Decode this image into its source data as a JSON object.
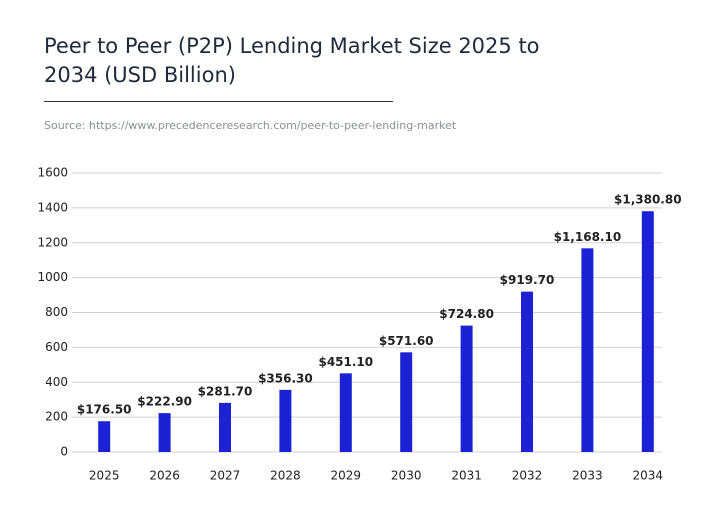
{
  "chart_data": {
    "type": "bar",
    "title": "Peer to Peer (P2P) Lending Market Size 2025 to 2034 (USD Billion)",
    "source": "Source: https://www.precedenceresearch.com/peer-to-peer-lending-market",
    "categories": [
      "2025",
      "2026",
      "2027",
      "2028",
      "2029",
      "2030",
      "2031",
      "2032",
      "2033",
      "2034"
    ],
    "values": [
      176.5,
      222.9,
      281.7,
      356.3,
      451.1,
      571.6,
      724.8,
      919.7,
      1168.1,
      1380.8
    ],
    "value_labels": [
      "$176.50",
      "$222.90",
      "$281.70",
      "$356.30",
      "$451.10",
      "$571.60",
      "$724.80",
      "$919.70",
      "$1,168.10",
      "$1,380.80"
    ],
    "color": "#1c22d4",
    "ylim": [
      0,
      1600
    ],
    "yticks": [
      0,
      200,
      400,
      600,
      800,
      1000,
      1200,
      1400,
      1600
    ],
    "grid": true
  }
}
